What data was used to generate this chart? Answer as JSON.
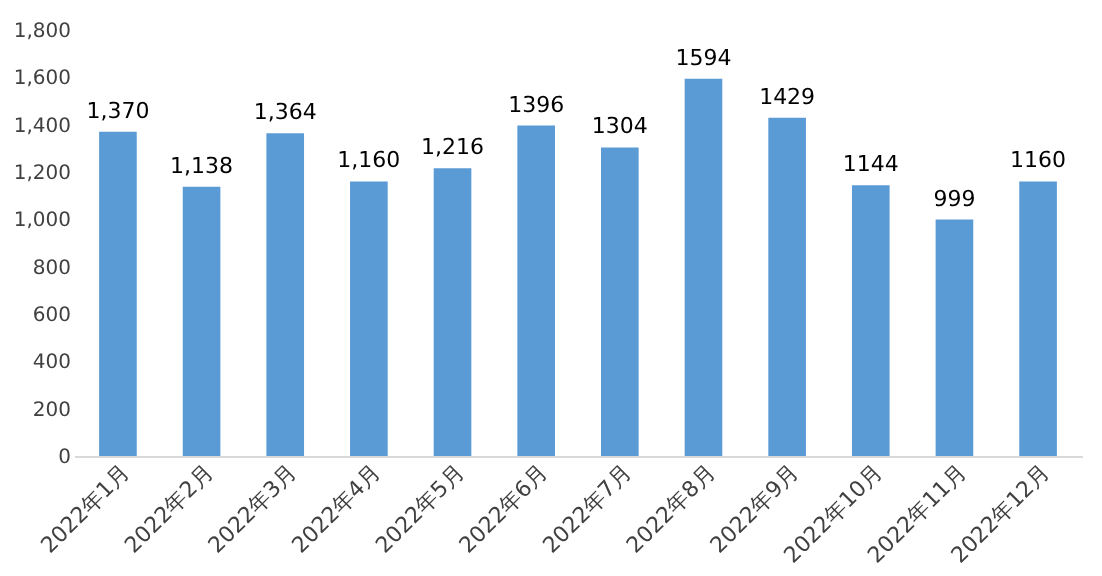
{
  "chart_data": {
    "type": "bar",
    "categories": [
      "2022年1月",
      "2022年2月",
      "2022年3月",
      "2022年4月",
      "2022年5月",
      "2022年6月",
      "2022年7月",
      "2022年8月",
      "2022年9月",
      "2022年10月",
      "2022年11月",
      "2022年12月"
    ],
    "values": [
      1370,
      1138,
      1364,
      1160,
      1216,
      1396,
      1304,
      1594,
      1429,
      1144,
      999,
      1160
    ],
    "value_labels": [
      "1,370",
      "1,138",
      "1,364",
      "1,160",
      "1,216",
      "1396",
      "1304",
      "1594",
      "1429",
      "1144",
      "999",
      "1160"
    ],
    "color": "#5b9bd5",
    "ylim": [
      0,
      1800
    ],
    "yticks": [
      0,
      200,
      400,
      600,
      800,
      {
        "value": 1000,
        "label": "1,000"
      },
      {
        "value": 1200,
        "label": "1,200"
      },
      {
        "value": 1400,
        "label": "1,400"
      },
      {
        "value": 1600,
        "label": "1,600"
      },
      {
        "value": 1800,
        "label": "1,800"
      }
    ],
    "grid": false
  }
}
